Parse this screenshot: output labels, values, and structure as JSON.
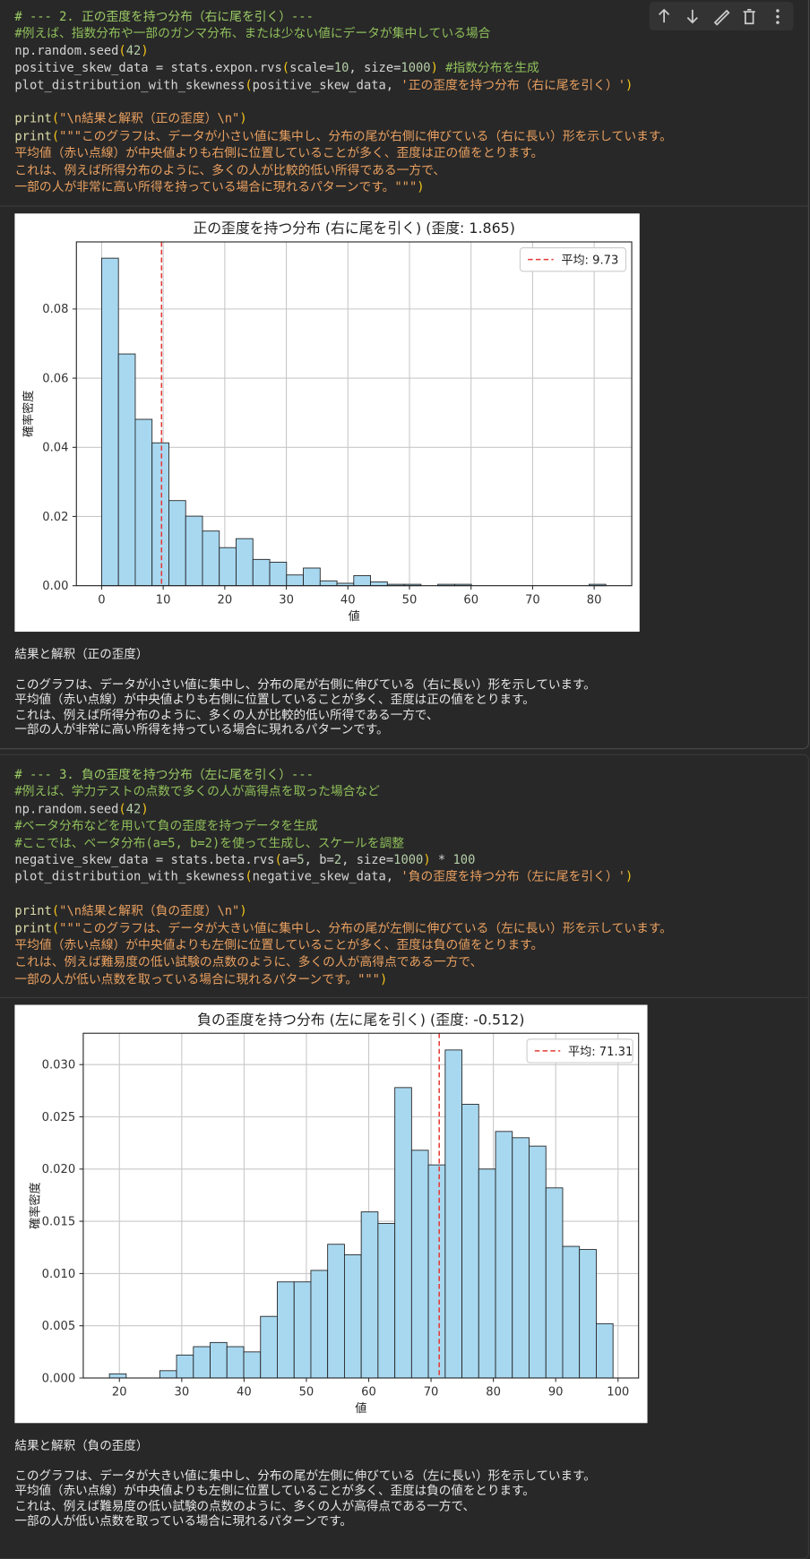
{
  "cells": [
    {
      "code": [
        [
          {
            "t": "# --- 2. 正の歪度を持つ分布（右に尾を引く）---",
            "c": "#9ccc65"
          }
        ],
        [
          {
            "t": "#例えば、指数分布や一部のガンマ分布、または少ない値にデータが集中している場合",
            "c": "#8fbf5a"
          }
        ],
        [
          {
            "t": "np.random.seed",
            "c": "#d4d4d4"
          },
          {
            "t": "(",
            "c": "#f5c518"
          },
          {
            "t": "42",
            "c": "#b5cea8"
          },
          {
            "t": ")",
            "c": "#f5c518"
          }
        ],
        [
          {
            "t": "positive_skew_data = stats.expon.rvs",
            "c": "#d4d4d4"
          },
          {
            "t": "(",
            "c": "#f5c518"
          },
          {
            "t": "scale=",
            "c": "#d4d4d4"
          },
          {
            "t": "10",
            "c": "#b5cea8"
          },
          {
            "t": ", size=",
            "c": "#d4d4d4"
          },
          {
            "t": "1000",
            "c": "#b5cea8"
          },
          {
            "t": ")",
            "c": "#f5c518"
          },
          {
            "t": " #指数分布を生成",
            "c": "#8fbf5a"
          }
        ],
        [
          {
            "t": "plot_distribution_with_skewness",
            "c": "#d4d4d4"
          },
          {
            "t": "(",
            "c": "#f5c518"
          },
          {
            "t": "positive_skew_data, ",
            "c": "#d4d4d4"
          },
          {
            "t": "'正の歪度を持つ分布（右に尾を引く）'",
            "c": "#e9a060"
          },
          {
            "t": ")",
            "c": "#f5c518"
          }
        ],
        [],
        [
          {
            "t": "print",
            "c": "#dcdcaa"
          },
          {
            "t": "(",
            "c": "#f5c518"
          },
          {
            "t": "\"\\n結果と解釈（正の歪度）\\n\"",
            "c": "#e9a060"
          },
          {
            "t": ")",
            "c": "#f5c518"
          }
        ],
        [
          {
            "t": "print",
            "c": "#dcdcaa"
          },
          {
            "t": "(",
            "c": "#f5c518"
          },
          {
            "t": "\"\"\"このグラフは、データが小さい値に集中し、分布の尾が右側に伸びている（右に長い）形を示しています。",
            "c": "#e9a060"
          }
        ],
        [
          {
            "t": "平均値（赤い点線）が中央値よりも右側に位置していることが多く、歪度は正の値をとります。",
            "c": "#e9a060"
          }
        ],
        [
          {
            "t": "これは、例えば所得分布のように、多くの人が比較的低い所得である一方で、",
            "c": "#e9a060"
          }
        ],
        [
          {
            "t": "一部の人が非常に高い所得を持っている場合に現れるパターンです。\"\"\"",
            "c": "#e9a060"
          },
          {
            "t": ")",
            "c": "#f5c518"
          }
        ]
      ],
      "output": {
        "heading": "結果と解釈（正の歪度）",
        "lines": [
          "このグラフは、データが小さい値に集中し、分布の尾が右側に伸びている（右に長い）形を示しています。",
          "平均値（赤い点線）が中央値よりも右側に位置していることが多く、歪度は正の値をとります。",
          "これは、例えば所得分布のように、多くの人が比較的低い所得である一方で、",
          "一部の人が非常に高い所得を持っている場合に現れるパターンです。"
        ]
      }
    },
    {
      "code": [
        [
          {
            "t": "# --- 3. 負の歪度を持つ分布（左に尾を引く）---",
            "c": "#9ccc65"
          }
        ],
        [
          {
            "t": "#例えば、学力テストの点数で多くの人が高得点を取った場合など",
            "c": "#8fbf5a"
          }
        ],
        [
          {
            "t": "np.random.seed",
            "c": "#d4d4d4"
          },
          {
            "t": "(",
            "c": "#f5c518"
          },
          {
            "t": "42",
            "c": "#b5cea8"
          },
          {
            "t": ")",
            "c": "#f5c518"
          }
        ],
        [
          {
            "t": "#ベータ分布などを用いて負の歪度を持つデータを生成",
            "c": "#8fbf5a"
          }
        ],
        [
          {
            "t": "#ここでは、ベータ分布(a=5, b=2)を使って生成し、スケールを調整",
            "c": "#8fbf5a"
          }
        ],
        [
          {
            "t": "negative_skew_data = stats.beta.rvs",
            "c": "#d4d4d4"
          },
          {
            "t": "(",
            "c": "#f5c518"
          },
          {
            "t": "a=",
            "c": "#d4d4d4"
          },
          {
            "t": "5",
            "c": "#b5cea8"
          },
          {
            "t": ", b=",
            "c": "#d4d4d4"
          },
          {
            "t": "2",
            "c": "#b5cea8"
          },
          {
            "t": ", size=",
            "c": "#d4d4d4"
          },
          {
            "t": "1000",
            "c": "#b5cea8"
          },
          {
            "t": ")",
            "c": "#f5c518"
          },
          {
            "t": " * ",
            "c": "#d4d4d4"
          },
          {
            "t": "100",
            "c": "#b5cea8"
          }
        ],
        [
          {
            "t": "plot_distribution_with_skewness",
            "c": "#d4d4d4"
          },
          {
            "t": "(",
            "c": "#f5c518"
          },
          {
            "t": "negative_skew_data, ",
            "c": "#d4d4d4"
          },
          {
            "t": "'負の歪度を持つ分布（左に尾を引く）'",
            "c": "#e9a060"
          },
          {
            "t": ")",
            "c": "#f5c518"
          }
        ],
        [],
        [
          {
            "t": "print",
            "c": "#dcdcaa"
          },
          {
            "t": "(",
            "c": "#f5c518"
          },
          {
            "t": "\"\\n結果と解釈（負の歪度）\\n\"",
            "c": "#e9a060"
          },
          {
            "t": ")",
            "c": "#f5c518"
          }
        ],
        [
          {
            "t": "print",
            "c": "#dcdcaa"
          },
          {
            "t": "(",
            "c": "#f5c518"
          },
          {
            "t": "\"\"\"このグラフは、データが大きい値に集中し、分布の尾が左側に伸びている（左に長い）形を示しています。",
            "c": "#e9a060"
          }
        ],
        [
          {
            "t": "平均値（赤い点線）が中央値よりも左側に位置していることが多く、歪度は負の値をとります。",
            "c": "#e9a060"
          }
        ],
        [
          {
            "t": "これは、例えば難易度の低い試験の点数のように、多くの人が高得点である一方で、",
            "c": "#e9a060"
          }
        ],
        [
          {
            "t": "一部の人が低い点数を取っている場合に現れるパターンです。\"\"\"",
            "c": "#e9a060"
          },
          {
            "t": ")",
            "c": "#f5c518"
          }
        ]
      ],
      "output": {
        "heading": "結果と解釈（負の歪度）",
        "lines": [
          "このグラフは、データが大きい値に集中し、分布の尾が左側に伸びている（左に長い）形を示しています。",
          "平均値（赤い点線）が中央値よりも左側に位置していることが多く、歪度は負の値をとります。",
          "これは、例えば難易度の低い試験の点数のように、多くの人が高得点である一方で、",
          "一部の人が低い点数を取っている場合に現れるパターンです。"
        ]
      }
    }
  ],
  "chart_data": [
    {
      "type": "histogram",
      "title": "正の歪度を持つ分布 (右に尾を引く) (歪度: 1.865)",
      "x_label": "値",
      "y_label": "確率密度",
      "bins": [
        0,
        2.73,
        5.46,
        8.19,
        10.92,
        13.65,
        16.38,
        19.11,
        21.84,
        24.57,
        27.3,
        30.03,
        32.76,
        35.49,
        38.22,
        40.95,
        43.68,
        46.41,
        49.14,
        51.87,
        54.6,
        57.33,
        60.06,
        62.79,
        65.52,
        68.25,
        70.98,
        73.71,
        76.44,
        79.17,
        81.9
      ],
      "values": [
        0.0947,
        0.067,
        0.0481,
        0.0413,
        0.0246,
        0.0201,
        0.0158,
        0.011,
        0.0136,
        0.0076,
        0.0068,
        0.0031,
        0.0051,
        0.0014,
        0.0007,
        0.0029,
        0.0011,
        0.0004,
        0.0004,
        0,
        0.0004,
        0.0004,
        0,
        0,
        0,
        0,
        0,
        0,
        0,
        0.0004
      ],
      "color": "#a8d8f0",
      "edge_color": "#222222",
      "mean_line": {
        "value": 9.73,
        "label": "平均: 9.73",
        "color": "#e53935"
      },
      "legend": "upper right",
      "grid": true,
      "xlim": [
        -4.1,
        86.1
      ],
      "xticks": [
        0,
        10,
        20,
        30,
        40,
        50,
        60,
        70,
        80
      ],
      "ylim": [
        0,
        0.0994
      ],
      "yticks": [
        {
          "value": 0,
          "label": "0.00"
        },
        {
          "value": 0.02,
          "label": "0.02"
        },
        {
          "value": 0.04,
          "label": "0.04"
        },
        {
          "value": 0.06,
          "label": "0.06"
        },
        {
          "value": 0.08,
          "label": "0.08"
        }
      ]
    },
    {
      "type": "histogram",
      "title": "負の歪度を持つ分布 (左に尾を引く) (歪度: -0.512)",
      "x_label": "値",
      "y_label": "確率密度",
      "bins": [
        18.4,
        21.09,
        23.79,
        26.48,
        29.17,
        31.87,
        34.56,
        37.25,
        39.95,
        42.64,
        45.33,
        48.03,
        50.72,
        53.41,
        56.11,
        58.8,
        61.49,
        64.19,
        66.88,
        69.57,
        72.27,
        74.96,
        77.65,
        80.35,
        83.04,
        85.73,
        88.43,
        91.12,
        93.81,
        96.51,
        99.2
      ],
      "values": [
        0.0004,
        0,
        0,
        0.0007,
        0.0022,
        0.003,
        0.0034,
        0.003,
        0.0025,
        0.0059,
        0.0092,
        0.0092,
        0.0103,
        0.0128,
        0.0118,
        0.0159,
        0.0148,
        0.0278,
        0.0218,
        0.0204,
        0.0314,
        0.0262,
        0.02,
        0.0236,
        0.023,
        0.0222,
        0.0182,
        0.0126,
        0.0123,
        0.0052
      ],
      "color": "#a8d8f0",
      "edge_color": "#222222",
      "mean_line": {
        "value": 71.31,
        "label": "平均: 71.31",
        "color": "#e53935"
      },
      "legend": "upper right",
      "grid": true,
      "xlim": [
        14.2,
        103.3
      ],
      "xticks": [
        20,
        30,
        40,
        50,
        60,
        70,
        80,
        90,
        100
      ],
      "ylim": [
        0,
        0.033
      ],
      "yticks": [
        {
          "value": 0,
          "label": "0.000"
        },
        {
          "value": 0.005,
          "label": "0.005"
        },
        {
          "value": 0.01,
          "label": "0.010"
        },
        {
          "value": 0.015,
          "label": "0.015"
        },
        {
          "value": 0.02,
          "label": "0.020"
        },
        {
          "value": 0.025,
          "label": "0.025"
        },
        {
          "value": 0.03,
          "label": "0.030"
        }
      ]
    }
  ]
}
